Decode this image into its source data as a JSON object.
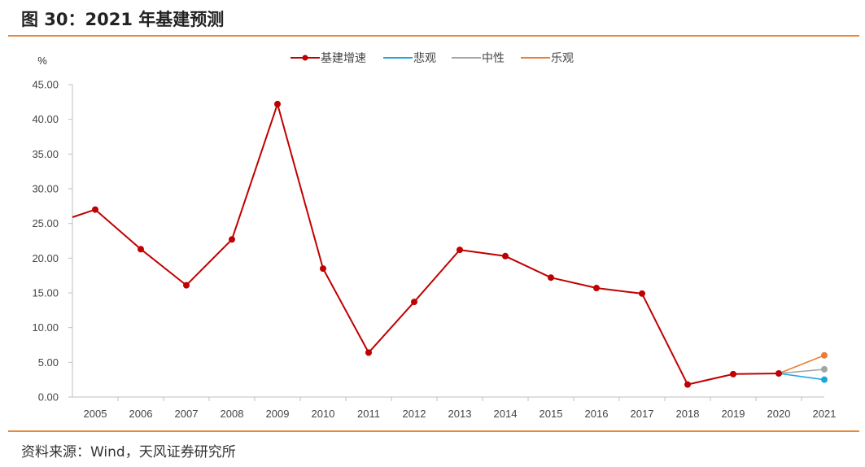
{
  "header": {
    "title": "图 30：2021 年基建预测"
  },
  "footer": {
    "source": "资料来源：Wind，天风证券研究所"
  },
  "colors": {
    "rule": "#e8883a",
    "main": "#c00000",
    "pessimistic": "#19a7e0",
    "neutral": "#a5a5a5",
    "optimistic": "#ed7d31",
    "axis": "#bfbfbf"
  },
  "chart_data": {
    "type": "line",
    "title": "",
    "ylabel": "%",
    "xlabel": "",
    "ylim": [
      0,
      45
    ],
    "yticks": [
      "0.00",
      "5.00",
      "10.00",
      "15.00",
      "20.00",
      "25.00",
      "30.00",
      "35.00",
      "40.00",
      "45.00"
    ],
    "categories": [
      "2005",
      "2006",
      "2007",
      "2008",
      "2009",
      "2010",
      "2011",
      "2012",
      "2013",
      "2014",
      "2015",
      "2016",
      "2017",
      "2018",
      "2019",
      "2020",
      "2021"
    ],
    "grid": false,
    "legend": "top-center",
    "series": [
      {
        "name": "基建增速",
        "color": "#c00000",
        "marker": true,
        "lead_in": 25.9,
        "values": [
          27.0,
          21.3,
          16.1,
          22.7,
          42.2,
          18.5,
          6.4,
          13.7,
          21.2,
          20.3,
          17.2,
          15.7,
          14.9,
          1.8,
          3.3,
          3.4,
          null
        ]
      },
      {
        "name": "悲观",
        "color": "#19a7e0",
        "marker": "end",
        "values": [
          null,
          null,
          null,
          null,
          null,
          null,
          null,
          null,
          null,
          null,
          null,
          null,
          null,
          null,
          null,
          3.4,
          2.5
        ]
      },
      {
        "name": "中性",
        "color": "#a5a5a5",
        "marker": "end",
        "values": [
          null,
          null,
          null,
          null,
          null,
          null,
          null,
          null,
          null,
          null,
          null,
          null,
          null,
          null,
          null,
          3.4,
          4.0
        ]
      },
      {
        "name": "乐观",
        "color": "#ed7d31",
        "marker": "end",
        "values": [
          null,
          null,
          null,
          null,
          null,
          null,
          null,
          null,
          null,
          null,
          null,
          null,
          null,
          null,
          null,
          3.4,
          6.0
        ]
      }
    ]
  }
}
